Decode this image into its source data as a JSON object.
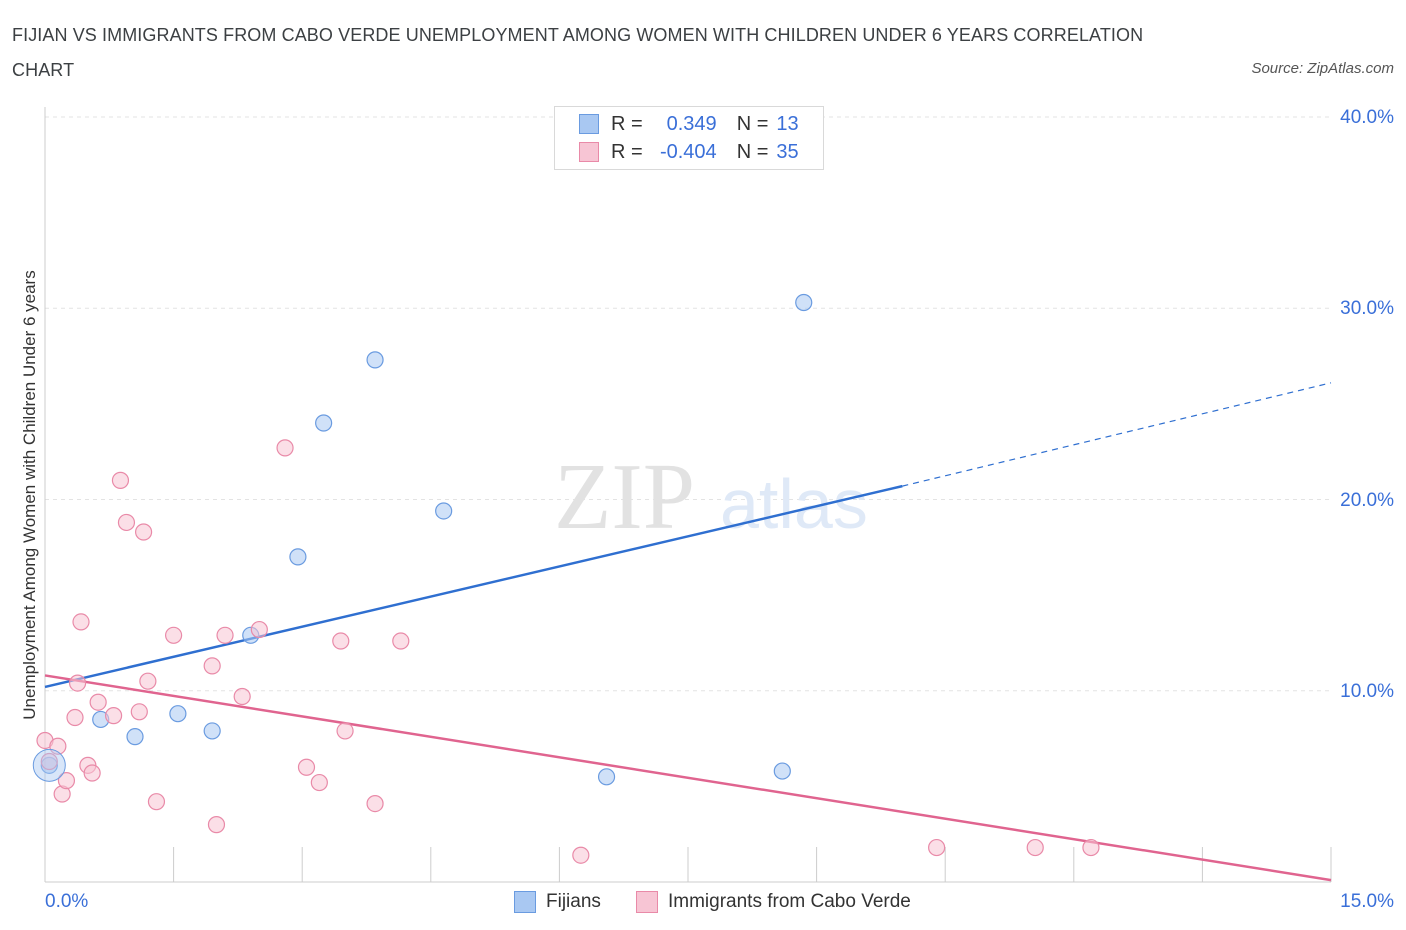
{
  "title": "FIJIAN VS IMMIGRANTS FROM CABO VERDE UNEMPLOYMENT AMONG WOMEN WITH CHILDREN UNDER 6 YEARS CORRELATION CHART",
  "source": "Source: ZipAtlas.com",
  "watermark": {
    "zip": "ZIP",
    "atlas": "atlas"
  },
  "legend": {
    "rows": [
      {
        "r_label": "R =",
        "r_value": "0.349",
        "n_label": "N =",
        "n_value": "13",
        "color": "#a9c8f2",
        "border": "#6a9be0"
      },
      {
        "r_label": "R =",
        "r_value": "-0.404",
        "n_label": "N =",
        "n_value": "35",
        "color": "#f7c5d4",
        "border": "#e98aa8"
      }
    ]
  },
  "bottom_legend": [
    "Fijians",
    "Immigrants from Cabo Verde"
  ],
  "chart_data": {
    "type": "scatter",
    "xlabel": "",
    "ylabel": "Unemployment Among Women with Children Under 6 years",
    "xlim": [
      0,
      15
    ],
    "ylim": [
      0,
      40
    ],
    "x_tick_labels": [
      "0.0%",
      "15.0%"
    ],
    "y_tick_labels": [
      "10.0%",
      "20.0%",
      "30.0%",
      "40.0%"
    ],
    "y_ticks": [
      10,
      20,
      30,
      40
    ],
    "grid": true,
    "legend_position": "top-center",
    "series": [
      {
        "name": "Fijians",
        "color": "#a9c8f2",
        "stroke": "#6a9be0",
        "points": [
          [
            0.05,
            6.1
          ],
          [
            0.65,
            8.5
          ],
          [
            1.05,
            7.6
          ],
          [
            1.55,
            8.8
          ],
          [
            1.95,
            7.9
          ],
          [
            2.4,
            12.9
          ],
          [
            2.95,
            17.0
          ],
          [
            3.25,
            24.0
          ],
          [
            3.85,
            27.3
          ],
          [
            4.65,
            19.4
          ],
          [
            6.55,
            5.5
          ],
          [
            8.6,
            5.8
          ],
          [
            8.85,
            30.3
          ]
        ],
        "trend": {
          "x0": 0,
          "y0": 10.2,
          "x1": 10.0,
          "y1": 20.7,
          "dash_x1": 15.0,
          "dash_y1": 26.1
        }
      },
      {
        "name": "Immigrants from Cabo Verde",
        "color": "#f7c5d4",
        "stroke": "#e98aa8",
        "points": [
          [
            0.0,
            7.4
          ],
          [
            0.05,
            6.3
          ],
          [
            0.15,
            7.1
          ],
          [
            0.2,
            4.6
          ],
          [
            0.25,
            5.3
          ],
          [
            0.35,
            8.6
          ],
          [
            0.38,
            10.4
          ],
          [
            0.42,
            13.6
          ],
          [
            0.5,
            6.1
          ],
          [
            0.55,
            5.7
          ],
          [
            0.62,
            9.4
          ],
          [
            0.8,
            8.7
          ],
          [
            0.88,
            21.0
          ],
          [
            0.95,
            18.8
          ],
          [
            1.1,
            8.9
          ],
          [
            1.15,
            18.3
          ],
          [
            1.2,
            10.5
          ],
          [
            1.3,
            4.2
          ],
          [
            1.5,
            12.9
          ],
          [
            1.95,
            11.3
          ],
          [
            2.0,
            3.0
          ],
          [
            2.1,
            12.9
          ],
          [
            2.3,
            9.7
          ],
          [
            2.5,
            13.2
          ],
          [
            2.8,
            22.7
          ],
          [
            3.05,
            6.0
          ],
          [
            3.2,
            5.2
          ],
          [
            3.45,
            12.6
          ],
          [
            3.5,
            7.9
          ],
          [
            3.85,
            4.1
          ],
          [
            4.15,
            12.6
          ],
          [
            6.25,
            1.4
          ],
          [
            10.4,
            1.8
          ],
          [
            11.55,
            1.8
          ],
          [
            12.2,
            1.8
          ]
        ],
        "trend": {
          "x0": 0,
          "y0": 10.8,
          "x1": 15.0,
          "y1": 0.1
        }
      }
    ]
  }
}
